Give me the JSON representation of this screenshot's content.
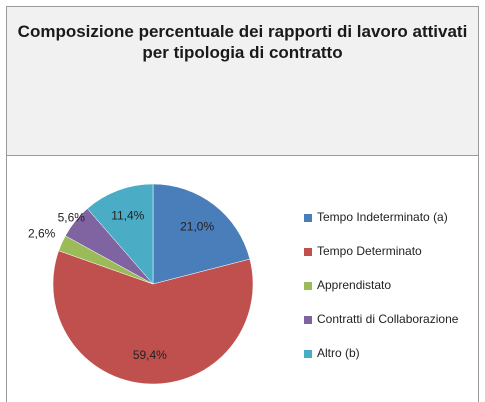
{
  "chart_data": {
    "type": "pie",
    "title": "Composizione percentuale dei rapporti di lavoro attivati per tipologia di contratto",
    "categories": [
      "Tempo Indeterminato (a)",
      "Tempo Determinato",
      "Apprendistato",
      "Contratti di Collaborazione",
      "Altro (b)"
    ],
    "values": [
      21.0,
      59.4,
      2.6,
      5.6,
      11.4
    ],
    "value_labels": [
      "21,0%",
      "59,4%",
      "2,6%",
      "5,6%",
      "11,4%"
    ],
    "colors": [
      "#4a7ebb",
      "#c0504d",
      "#9bbb59",
      "#8064a2",
      "#4bacc6"
    ]
  }
}
